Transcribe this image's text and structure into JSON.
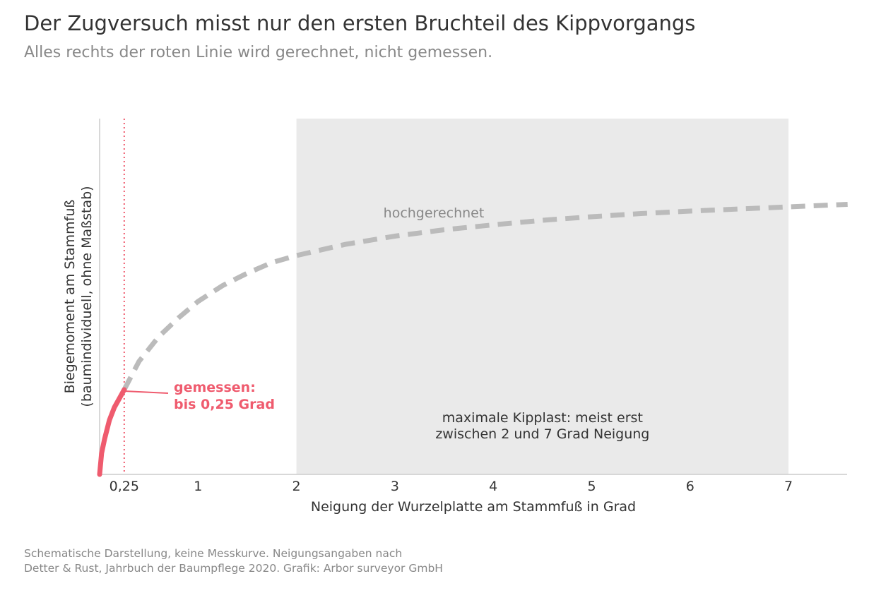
{
  "title": "Der Zugversuch misst nur den ersten Bruchteil des Kippvorgangs",
  "subtitle": "Alles rechts der roten Linie wird gerechnet, nicht gemessen.",
  "footer": {
    "line1": "Schematische Darstellung, keine Messkurve. Neigungsangaben nach",
    "line2": "Detter & Rust, Jahrbuch der Baumpflege 2020. Grafik: Arbor surveyor GmbH"
  },
  "colors": {
    "measured": "#EF5B6E",
    "extrapolated": "#BBBBBB",
    "band": "#EAEAEA",
    "axis": "#CCCCCC",
    "text": "#333333",
    "muted": "#888888"
  },
  "chart_data": {
    "type": "line",
    "xlabel": "Neigung der Wurzelplatte am Stammfuß in Grad",
    "ylabel_line1": "Biegemoment am Stammfuß",
    "ylabel_line2": "(baumindividuell, ohne Maßstab)",
    "xlim": [
      0,
      7.6
    ],
    "ylim": [
      0,
      1
    ],
    "grid": false,
    "x_ticks": [
      {
        "value": 0.25,
        "label": "0,25"
      },
      {
        "value": 1,
        "label": "1"
      },
      {
        "value": 2,
        "label": "2"
      },
      {
        "value": 3,
        "label": "3"
      },
      {
        "value": 4,
        "label": "4"
      },
      {
        "value": 5,
        "label": "5"
      },
      {
        "value": 6,
        "label": "6"
      },
      {
        "value": 7,
        "label": "7"
      }
    ],
    "band": {
      "x_from": 2,
      "x_to": 7,
      "label_line1": "maximale Kipplast: meist erst",
      "label_line2": "zwischen 2 und 7 Grad Neigung"
    },
    "reference_line": {
      "x": 0.25
    },
    "series": [
      {
        "role": "measured",
        "style": "solid",
        "x": [
          0,
          0.02,
          0.05,
          0.1,
          0.15,
          0.2,
          0.25
        ],
        "y": [
          0,
          0.06,
          0.1,
          0.154,
          0.19,
          0.215,
          0.24
        ]
      },
      {
        "role": "extrapolated",
        "name": "hochgerechnet",
        "style": "dashed",
        "x": [
          0.25,
          0.4,
          0.6,
          0.8,
          1.0,
          1.25,
          1.5,
          1.75,
          2.0,
          2.5,
          3.0,
          3.5,
          4.0,
          4.5,
          5.0,
          5.5,
          6.0,
          6.5,
          7.0,
          7.6
        ],
        "y": [
          0.24,
          0.32,
          0.39,
          0.443,
          0.49,
          0.535,
          0.57,
          0.6,
          0.62,
          0.652,
          0.675,
          0.693,
          0.707,
          0.72,
          0.73,
          0.739,
          0.746,
          0.752,
          0.758,
          0.765
        ]
      }
    ],
    "annotations": {
      "measured_line1": "gemessen:",
      "measured_line2": "bis 0,25 Grad",
      "extrapolated": "hochgerechnet"
    }
  }
}
